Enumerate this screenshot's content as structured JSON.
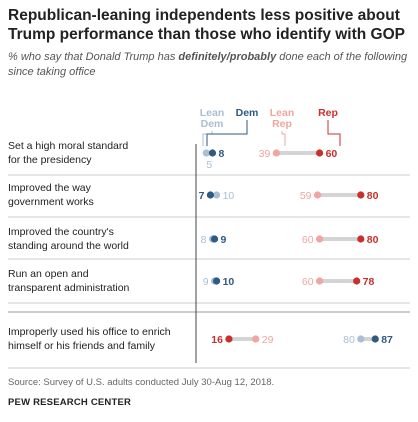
{
  "title": "Republican-leaning independents less positive about Trump performance than those who identify with GOP",
  "subtitle": {
    "before": "% who say that Donald Trump has ",
    "emphasis": "definitely/probably",
    "after": " done each of the following since taking office"
  },
  "source": "Source: Survey of U.S. adults conducted July 30-Aug 12, 2018.",
  "organization": "PEW RESEARCH CENTER",
  "colors": {
    "lean_dem": "#a9bfd6",
    "dem": "#2f5a82",
    "lean_rep": "#f0a5a0",
    "rep": "#c8302c",
    "connector": "#d4d4d4",
    "axis": "#444444",
    "divider": "#cccccc",
    "label_text": "#222222"
  },
  "chart_data": {
    "type": "dot",
    "legend": [
      {
        "key": "lean_dem",
        "label": [
          "Lean",
          "Dem"
        ]
      },
      {
        "key": "dem",
        "label": [
          "Dem"
        ]
      },
      {
        "key": "lean_rep",
        "label": [
          "Lean",
          "Rep"
        ]
      },
      {
        "key": "rep",
        "label": [
          "Rep"
        ]
      }
    ],
    "xlim": [
      0,
      100
    ],
    "series": [
      "lean_dem",
      "dem",
      "lean_rep",
      "rep"
    ],
    "rows": [
      {
        "label": [
          "Set a high moral standard",
          "for the presidency"
        ],
        "values": {
          "lean_dem": 5,
          "dem": 8,
          "lean_rep": 39,
          "rep": 60
        }
      },
      {
        "label": [
          "Improved the way",
          "government works"
        ],
        "values": {
          "lean_dem": 10,
          "dem": 7,
          "lean_rep": 59,
          "rep": 80
        }
      },
      {
        "label": [
          "Improved the country's",
          "standing around the world"
        ],
        "values": {
          "lean_dem": 8,
          "dem": 9,
          "lean_rep": 60,
          "rep": 80
        }
      },
      {
        "label": [
          "Run an open and",
          "transparent administration"
        ],
        "values": {
          "lean_dem": 9,
          "dem": 10,
          "lean_rep": 60,
          "rep": 78
        }
      },
      {
        "label": [
          "Improperly used his office to enrich",
          "himself or his friends and family"
        ],
        "values": {
          "lean_dem": 80,
          "dem": 87,
          "lean_rep": 29,
          "rep": 16
        }
      }
    ]
  }
}
